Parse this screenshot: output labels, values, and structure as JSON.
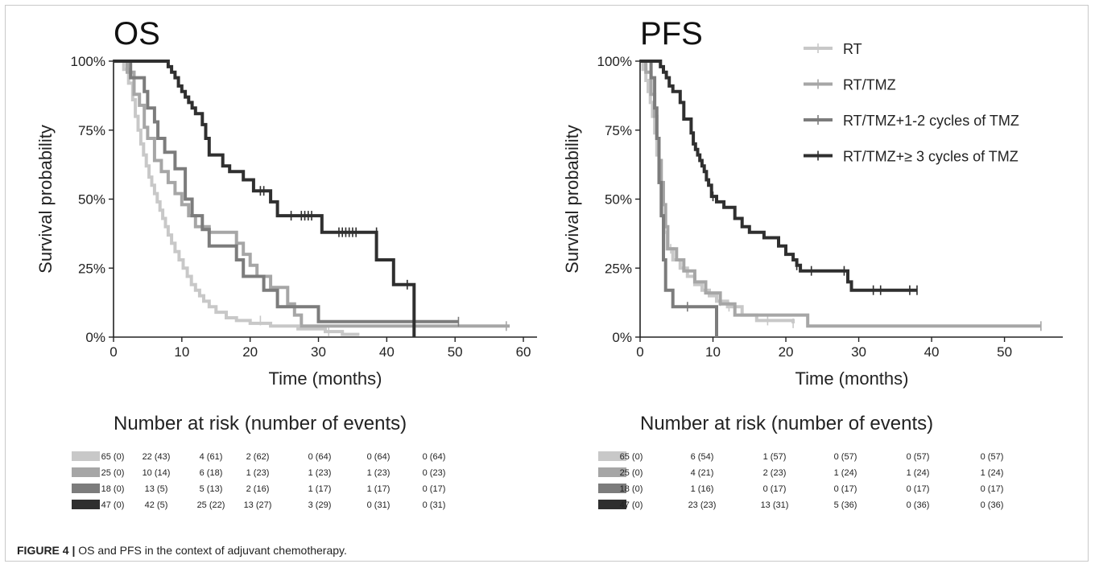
{
  "figure": {
    "caption_label": "FIGURE 4 |",
    "caption_text": "OS and PFS in the context of adjuvant chemotherapy."
  },
  "colors": {
    "RT": "#c8c8c8",
    "RT/TMZ": "#a6a6a6",
    "RT/TMZ+1-2 cycles of TMZ": "#7c7c7c",
    "RT/TMZ+≥ 3 cycles of TMZ": "#2f2f2f"
  },
  "chart_data": [
    {
      "type": "line",
      "subtype": "kaplan-meier",
      "title": "OS",
      "xlabel": "Time (months)",
      "ylabel": "Survival probability",
      "xlim": [
        0,
        62
      ],
      "ylim": [
        0,
        1
      ],
      "xticks": [
        0,
        10,
        20,
        30,
        40,
        50,
        60
      ],
      "yticks": [
        0,
        0.25,
        0.5,
        0.75,
        1
      ],
      "ytick_labels": [
        "0%",
        "25%",
        "50%",
        "75%",
        "100%"
      ],
      "grid": false,
      "legend": null,
      "series": [
        {
          "name": "RT",
          "color": "#c8c8c8",
          "steps": [
            [
              0,
              1
            ],
            [
              1.5,
              0.97
            ],
            [
              2.2,
              0.92
            ],
            [
              2.8,
              0.86
            ],
            [
              3.2,
              0.8
            ],
            [
              3.6,
              0.75
            ],
            [
              4,
              0.7
            ],
            [
              4.4,
              0.66
            ],
            [
              4.8,
              0.62
            ],
            [
              5.2,
              0.58
            ],
            [
              5.6,
              0.55
            ],
            [
              6,
              0.52
            ],
            [
              6.4,
              0.49
            ],
            [
              6.8,
              0.46
            ],
            [
              7.2,
              0.43
            ],
            [
              7.6,
              0.4
            ],
            [
              8,
              0.37
            ],
            [
              8.5,
              0.34
            ],
            [
              9,
              0.31
            ],
            [
              9.6,
              0.28
            ],
            [
              10.2,
              0.25
            ],
            [
              10.8,
              0.22
            ],
            [
              11.4,
              0.19
            ],
            [
              12,
              0.17
            ],
            [
              12.6,
              0.15
            ],
            [
              13.2,
              0.13
            ],
            [
              14,
              0.11
            ],
            [
              15,
              0.09
            ],
            [
              16.5,
              0.07
            ],
            [
              18,
              0.06
            ],
            [
              20,
              0.05
            ],
            [
              23,
              0.04
            ],
            [
              27,
              0.03
            ],
            [
              31,
              0.02
            ],
            [
              33.5,
              0.01
            ],
            [
              36,
              0.01
            ]
          ],
          "censors": [
            [
              21.5,
              0.06
            ],
            [
              31.5,
              0.02
            ]
          ]
        },
        {
          "name": "RT/TMZ",
          "color": "#a6a6a6",
          "steps": [
            [
              0,
              1
            ],
            [
              2,
              0.96
            ],
            [
              3,
              0.88
            ],
            [
              3.8,
              0.84
            ],
            [
              4.5,
              0.76
            ],
            [
              5,
              0.72
            ],
            [
              6,
              0.64
            ],
            [
              7,
              0.6
            ],
            [
              8,
              0.56
            ],
            [
              9,
              0.52
            ],
            [
              10,
              0.48
            ],
            [
              11,
              0.44
            ],
            [
              12,
              0.4
            ],
            [
              14,
              0.38
            ],
            [
              18,
              0.34
            ],
            [
              19,
              0.3
            ],
            [
              20,
              0.26
            ],
            [
              21,
              0.22
            ],
            [
              23,
              0.18
            ],
            [
              25.5,
              0.12
            ],
            [
              26.5,
              0.08
            ],
            [
              27.5,
              0.04
            ],
            [
              58,
              0.04
            ]
          ],
          "censors": [
            [
              57.5,
              0.04
            ]
          ]
        },
        {
          "name": "RT/TMZ+1-2 cycles of TMZ",
          "color": "#7c7c7c",
          "steps": [
            [
              0,
              1
            ],
            [
              2.5,
              0.94
            ],
            [
              4.5,
              0.89
            ],
            [
              5,
              0.83
            ],
            [
              6,
              0.78
            ],
            [
              6.5,
              0.72
            ],
            [
              7.5,
              0.67
            ],
            [
              9,
              0.61
            ],
            [
              10.5,
              0.5
            ],
            [
              11.5,
              0.44
            ],
            [
              13,
              0.39
            ],
            [
              14,
              0.33
            ],
            [
              18,
              0.28
            ],
            [
              19,
              0.22
            ],
            [
              22,
              0.17
            ],
            [
              24,
              0.11
            ],
            [
              30,
              0.056
            ],
            [
              50.5,
              0.056
            ]
          ],
          "censors": [
            [
              50.5,
              0.056
            ]
          ]
        },
        {
          "name": "RT/TMZ+≥ 3 cycles of TMZ",
          "color": "#2f2f2f",
          "steps": [
            [
              0,
              1
            ],
            [
              8,
              0.98
            ],
            [
              8.5,
              0.96
            ],
            [
              9,
              0.94
            ],
            [
              9.5,
              0.91
            ],
            [
              10,
              0.89
            ],
            [
              10.5,
              0.87
            ],
            [
              11,
              0.85
            ],
            [
              11.5,
              0.83
            ],
            [
              12,
              0.81
            ],
            [
              13,
              0.77
            ],
            [
              13.5,
              0.72
            ],
            [
              14,
              0.66
            ],
            [
              16,
              0.62
            ],
            [
              17,
              0.6
            ],
            [
              19,
              0.57
            ],
            [
              20.5,
              0.53
            ],
            [
              23,
              0.49
            ],
            [
              24,
              0.44
            ],
            [
              30.5,
              0.38
            ],
            [
              38.5,
              0.28
            ],
            [
              41,
              0.19
            ],
            [
              44,
              0
            ]
          ],
          "censors": [
            [
              21.5,
              0.53
            ],
            [
              22,
              0.53
            ],
            [
              26,
              0.44
            ],
            [
              27.5,
              0.44
            ],
            [
              28,
              0.44
            ],
            [
              28.5,
              0.44
            ],
            [
              29,
              0.44
            ],
            [
              33,
              0.38
            ],
            [
              33.5,
              0.38
            ],
            [
              34,
              0.38
            ],
            [
              34.5,
              0.38
            ],
            [
              35,
              0.38
            ],
            [
              35.5,
              0.38
            ],
            [
              38.5,
              0.38
            ],
            [
              43,
              0.19
            ]
          ]
        }
      ],
      "risk_table": {
        "title": "Number at risk (number of events)",
        "rows": [
          {
            "name": "RT",
            "values": [
              "65 (0)",
              "22 (43)",
              "4 (61)",
              "2 (62)",
              "0 (64)",
              "0 (64)",
              "0 (64)"
            ]
          },
          {
            "name": "RT/TMZ",
            "values": [
              "25 (0)",
              "10 (14)",
              "6 (18)",
              "1 (23)",
              "1 (23)",
              "1 (23)",
              "0 (23)"
            ]
          },
          {
            "name": "RT/TMZ+1-2 cycles of TMZ",
            "values": [
              "18 (0)",
              "13 (5)",
              "5 (13)",
              "2 (16)",
              "1 (17)",
              "1 (17)",
              "0 (17)"
            ]
          },
          {
            "name": "RT/TMZ+≥ 3 cycles of TMZ",
            "values": [
              "47 (0)",
              "42 (5)",
              "25 (22)",
              "13 (27)",
              "3 (29)",
              "0 (31)",
              "0 (31)"
            ]
          }
        ]
      }
    },
    {
      "type": "line",
      "subtype": "kaplan-meier",
      "title": "PFS",
      "xlabel": "Time (months)",
      "ylabel": "Survival probability",
      "xlim": [
        0,
        58
      ],
      "ylim": [
        0,
        1
      ],
      "xticks": [
        0,
        10,
        20,
        30,
        40,
        50
      ],
      "yticks": [
        0,
        0.25,
        0.5,
        0.75,
        1
      ],
      "ytick_labels": [
        "0%",
        "25%",
        "50%",
        "75%",
        "100%"
      ],
      "grid": false,
      "legend": "top-right",
      "series": [
        {
          "name": "RT",
          "color": "#c8c8c8",
          "steps": [
            [
              0,
              1
            ],
            [
              0.4,
              0.97
            ],
            [
              0.8,
              0.93
            ],
            [
              1.1,
              0.89
            ],
            [
              1.4,
              0.85
            ],
            [
              1.7,
              0.8
            ],
            [
              2,
              0.74
            ],
            [
              2.3,
              0.66
            ],
            [
              2.6,
              0.56
            ],
            [
              3,
              0.44
            ],
            [
              3.3,
              0.38
            ],
            [
              3.7,
              0.32
            ],
            [
              4.5,
              0.28
            ],
            [
              5.5,
              0.25
            ],
            [
              6.5,
              0.22
            ],
            [
              7.5,
              0.19
            ],
            [
              8.5,
              0.17
            ],
            [
              9.5,
              0.15
            ],
            [
              10.5,
              0.13
            ],
            [
              12,
              0.11
            ],
            [
              14,
              0.08
            ],
            [
              16,
              0.06
            ],
            [
              21,
              0.05
            ]
          ],
          "censors": [
            [
              4.2,
              0.32
            ],
            [
              11,
              0.13
            ],
            [
              12.2,
              0.11
            ],
            [
              17.5,
              0.06
            ],
            [
              21,
              0.05
            ]
          ]
        },
        {
          "name": "RT/TMZ",
          "color": "#a6a6a6",
          "steps": [
            [
              0,
              1
            ],
            [
              0.8,
              0.96
            ],
            [
              1.5,
              0.88
            ],
            [
              2,
              0.8
            ],
            [
              2.3,
              0.72
            ],
            [
              2.6,
              0.64
            ],
            [
              2.9,
              0.56
            ],
            [
              3.2,
              0.48
            ],
            [
              3.5,
              0.4
            ],
            [
              3.8,
              0.32
            ],
            [
              5,
              0.28
            ],
            [
              6,
              0.24
            ],
            [
              7.5,
              0.2
            ],
            [
              9,
              0.16
            ],
            [
              11,
              0.12
            ],
            [
              13,
              0.08
            ],
            [
              23,
              0.04
            ],
            [
              55,
              0.04
            ]
          ],
          "censors": [
            [
              55,
              0.04
            ]
          ]
        },
        {
          "name": "RT/TMZ+1-2 cycles of TMZ",
          "color": "#7c7c7c",
          "steps": [
            [
              0,
              1
            ],
            [
              1.5,
              0.94
            ],
            [
              2,
              0.83
            ],
            [
              2.3,
              0.72
            ],
            [
              2.6,
              0.56
            ],
            [
              2.9,
              0.44
            ],
            [
              3.2,
              0.28
            ],
            [
              3.5,
              0.17
            ],
            [
              4.5,
              0.11
            ],
            [
              10.5,
              0
            ]
          ],
          "censors": [
            [
              6.5,
              0.11
            ]
          ]
        },
        {
          "name": "RT/TMZ+≥ 3 cycles of TMZ",
          "color": "#2f2f2f",
          "steps": [
            [
              0,
              1
            ],
            [
              2.8,
              0.98
            ],
            [
              3.2,
              0.96
            ],
            [
              3.6,
              0.94
            ],
            [
              4,
              0.91
            ],
            [
              4.5,
              0.89
            ],
            [
              5.5,
              0.85
            ],
            [
              6,
              0.79
            ],
            [
              7,
              0.74
            ],
            [
              7.3,
              0.7
            ],
            [
              7.6,
              0.68
            ],
            [
              7.9,
              0.66
            ],
            [
              8.2,
              0.64
            ],
            [
              8.5,
              0.62
            ],
            [
              8.8,
              0.6
            ],
            [
              9.1,
              0.57
            ],
            [
              9.4,
              0.55
            ],
            [
              9.8,
              0.51
            ],
            [
              10.5,
              0.49
            ],
            [
              11.5,
              0.47
            ],
            [
              13,
              0.43
            ],
            [
              14,
              0.4
            ],
            [
              15,
              0.38
            ],
            [
              17,
              0.36
            ],
            [
              19,
              0.33
            ],
            [
              20,
              0.3
            ],
            [
              21,
              0.28
            ],
            [
              21.5,
              0.26
            ],
            [
              22,
              0.24
            ],
            [
              28.5,
              0.2
            ],
            [
              29,
              0.17
            ],
            [
              38,
              0.17
            ]
          ],
          "censors": [
            [
              10,
              0.51
            ],
            [
              21.5,
              0.26
            ],
            [
              23.5,
              0.24
            ],
            [
              28,
              0.24
            ],
            [
              32,
              0.17
            ],
            [
              33,
              0.17
            ],
            [
              37,
              0.17
            ],
            [
              38,
              0.17
            ]
          ]
        }
      ],
      "risk_table": {
        "title": "Number at risk (number of events)",
        "rows": [
          {
            "name": "RT",
            "values": [
              "65 (0)",
              "6 (54)",
              "1 (57)",
              "0 (57)",
              "0 (57)",
              "0 (57)"
            ]
          },
          {
            "name": "RT/TMZ",
            "values": [
              "25 (0)",
              "4 (21)",
              "2 (23)",
              "1 (24)",
              "1 (24)",
              "1 (24)"
            ]
          },
          {
            "name": "RT/TMZ+1-2 cycles of TMZ",
            "values": [
              "18 (0)",
              "1 (16)",
              "0 (17)",
              "0 (17)",
              "0 (17)",
              "0 (17)"
            ]
          },
          {
            "name": "RT/TMZ+≥ 3 cycles of TMZ",
            "values": [
              "47 (0)",
              "23 (23)",
              "13 (31)",
              "5 (36)",
              "0 (36)",
              "0 (36)"
            ]
          }
        ]
      }
    }
  ]
}
